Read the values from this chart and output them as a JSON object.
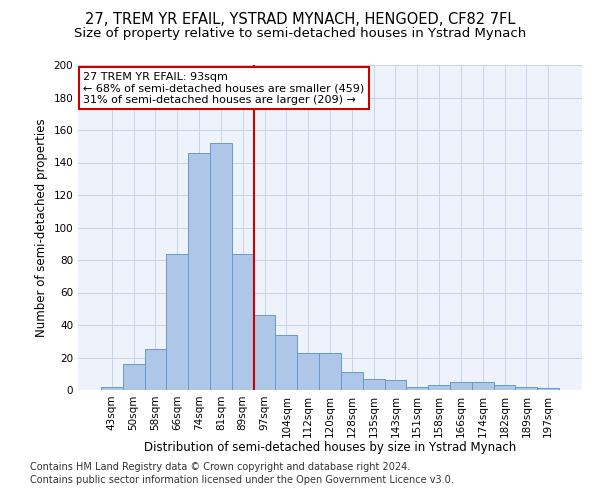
{
  "title": "27, TREM YR EFAIL, YSTRAD MYNACH, HENGOED, CF82 7FL",
  "subtitle": "Size of property relative to semi-detached houses in Ystrad Mynach",
  "xlabel": "Distribution of semi-detached houses by size in Ystrad Mynach",
  "ylabel": "Number of semi-detached properties",
  "categories": [
    "43sqm",
    "50sqm",
    "58sqm",
    "66sqm",
    "74sqm",
    "81sqm",
    "89sqm",
    "97sqm",
    "104sqm",
    "112sqm",
    "120sqm",
    "128sqm",
    "135sqm",
    "143sqm",
    "151sqm",
    "158sqm",
    "166sqm",
    "174sqm",
    "182sqm",
    "189sqm",
    "197sqm"
  ],
  "values": [
    2,
    16,
    25,
    84,
    146,
    152,
    84,
    46,
    34,
    23,
    23,
    11,
    7,
    6,
    2,
    3,
    5,
    5,
    3,
    2,
    1
  ],
  "bar_color": "#aec6e8",
  "bar_edge_color": "#6699cc",
  "vline_x": 6.5,
  "annotation_text1": "27 TREM YR EFAIL: 93sqm",
  "annotation_text2": "← 68% of semi-detached houses are smaller (459)",
  "annotation_text3": "31% of semi-detached houses are larger (209) →",
  "annotation_box_color": "#ffffff",
  "annotation_border_color": "#cc0000",
  "vline_color": "#cc0000",
  "ylim": [
    0,
    200
  ],
  "yticks": [
    0,
    20,
    40,
    60,
    80,
    100,
    120,
    140,
    160,
    180,
    200
  ],
  "footer1": "Contains HM Land Registry data © Crown copyright and database right 2024.",
  "footer2": "Contains public sector information licensed under the Open Government Licence v3.0.",
  "bg_color": "#eef3fb",
  "grid_color": "#c8d4e8",
  "title_fontsize": 10.5,
  "subtitle_fontsize": 9.5,
  "axis_label_fontsize": 8.5,
  "tick_fontsize": 7.5,
  "annotation_fontsize": 8,
  "footer_fontsize": 7
}
